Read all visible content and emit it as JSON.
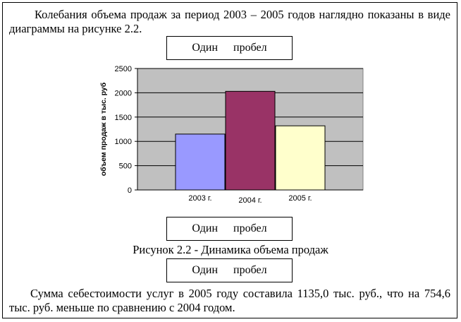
{
  "paragraph_top": "Колебания объема продаж за период 2003 – 2005  годов наглядно показаны в виде диаграммы на рисунке 2.2.",
  "spacer_label": "Один пробел",
  "caption": "Рисунок 2.2 - Динамика объема продаж",
  "paragraph_bottom": "Сумма себестоимости  услуг в 2005 году составила 1135,0 тыс. руб., что на 754,6  тыс. руб. меньше по сравнению с 2004 годом.",
  "colors": {
    "bar_2003": "#9999FF",
    "bar_2004": "#993366",
    "bar_2005": "#FFFFCC",
    "plot_bg": "#C0C0C0"
  },
  "chart_data": {
    "type": "bar",
    "categories": [
      "2003 г.",
      "2004 г.",
      "2005 г."
    ],
    "values": [
      1150,
      2030,
      1320
    ],
    "ylabel": "объем продаж в тыс. руб",
    "ylim": [
      0,
      2500
    ],
    "yticks": [
      "0",
      "500",
      "1000",
      "1500",
      "2000",
      "2500"
    ],
    "grid": true,
    "legend": "none"
  }
}
